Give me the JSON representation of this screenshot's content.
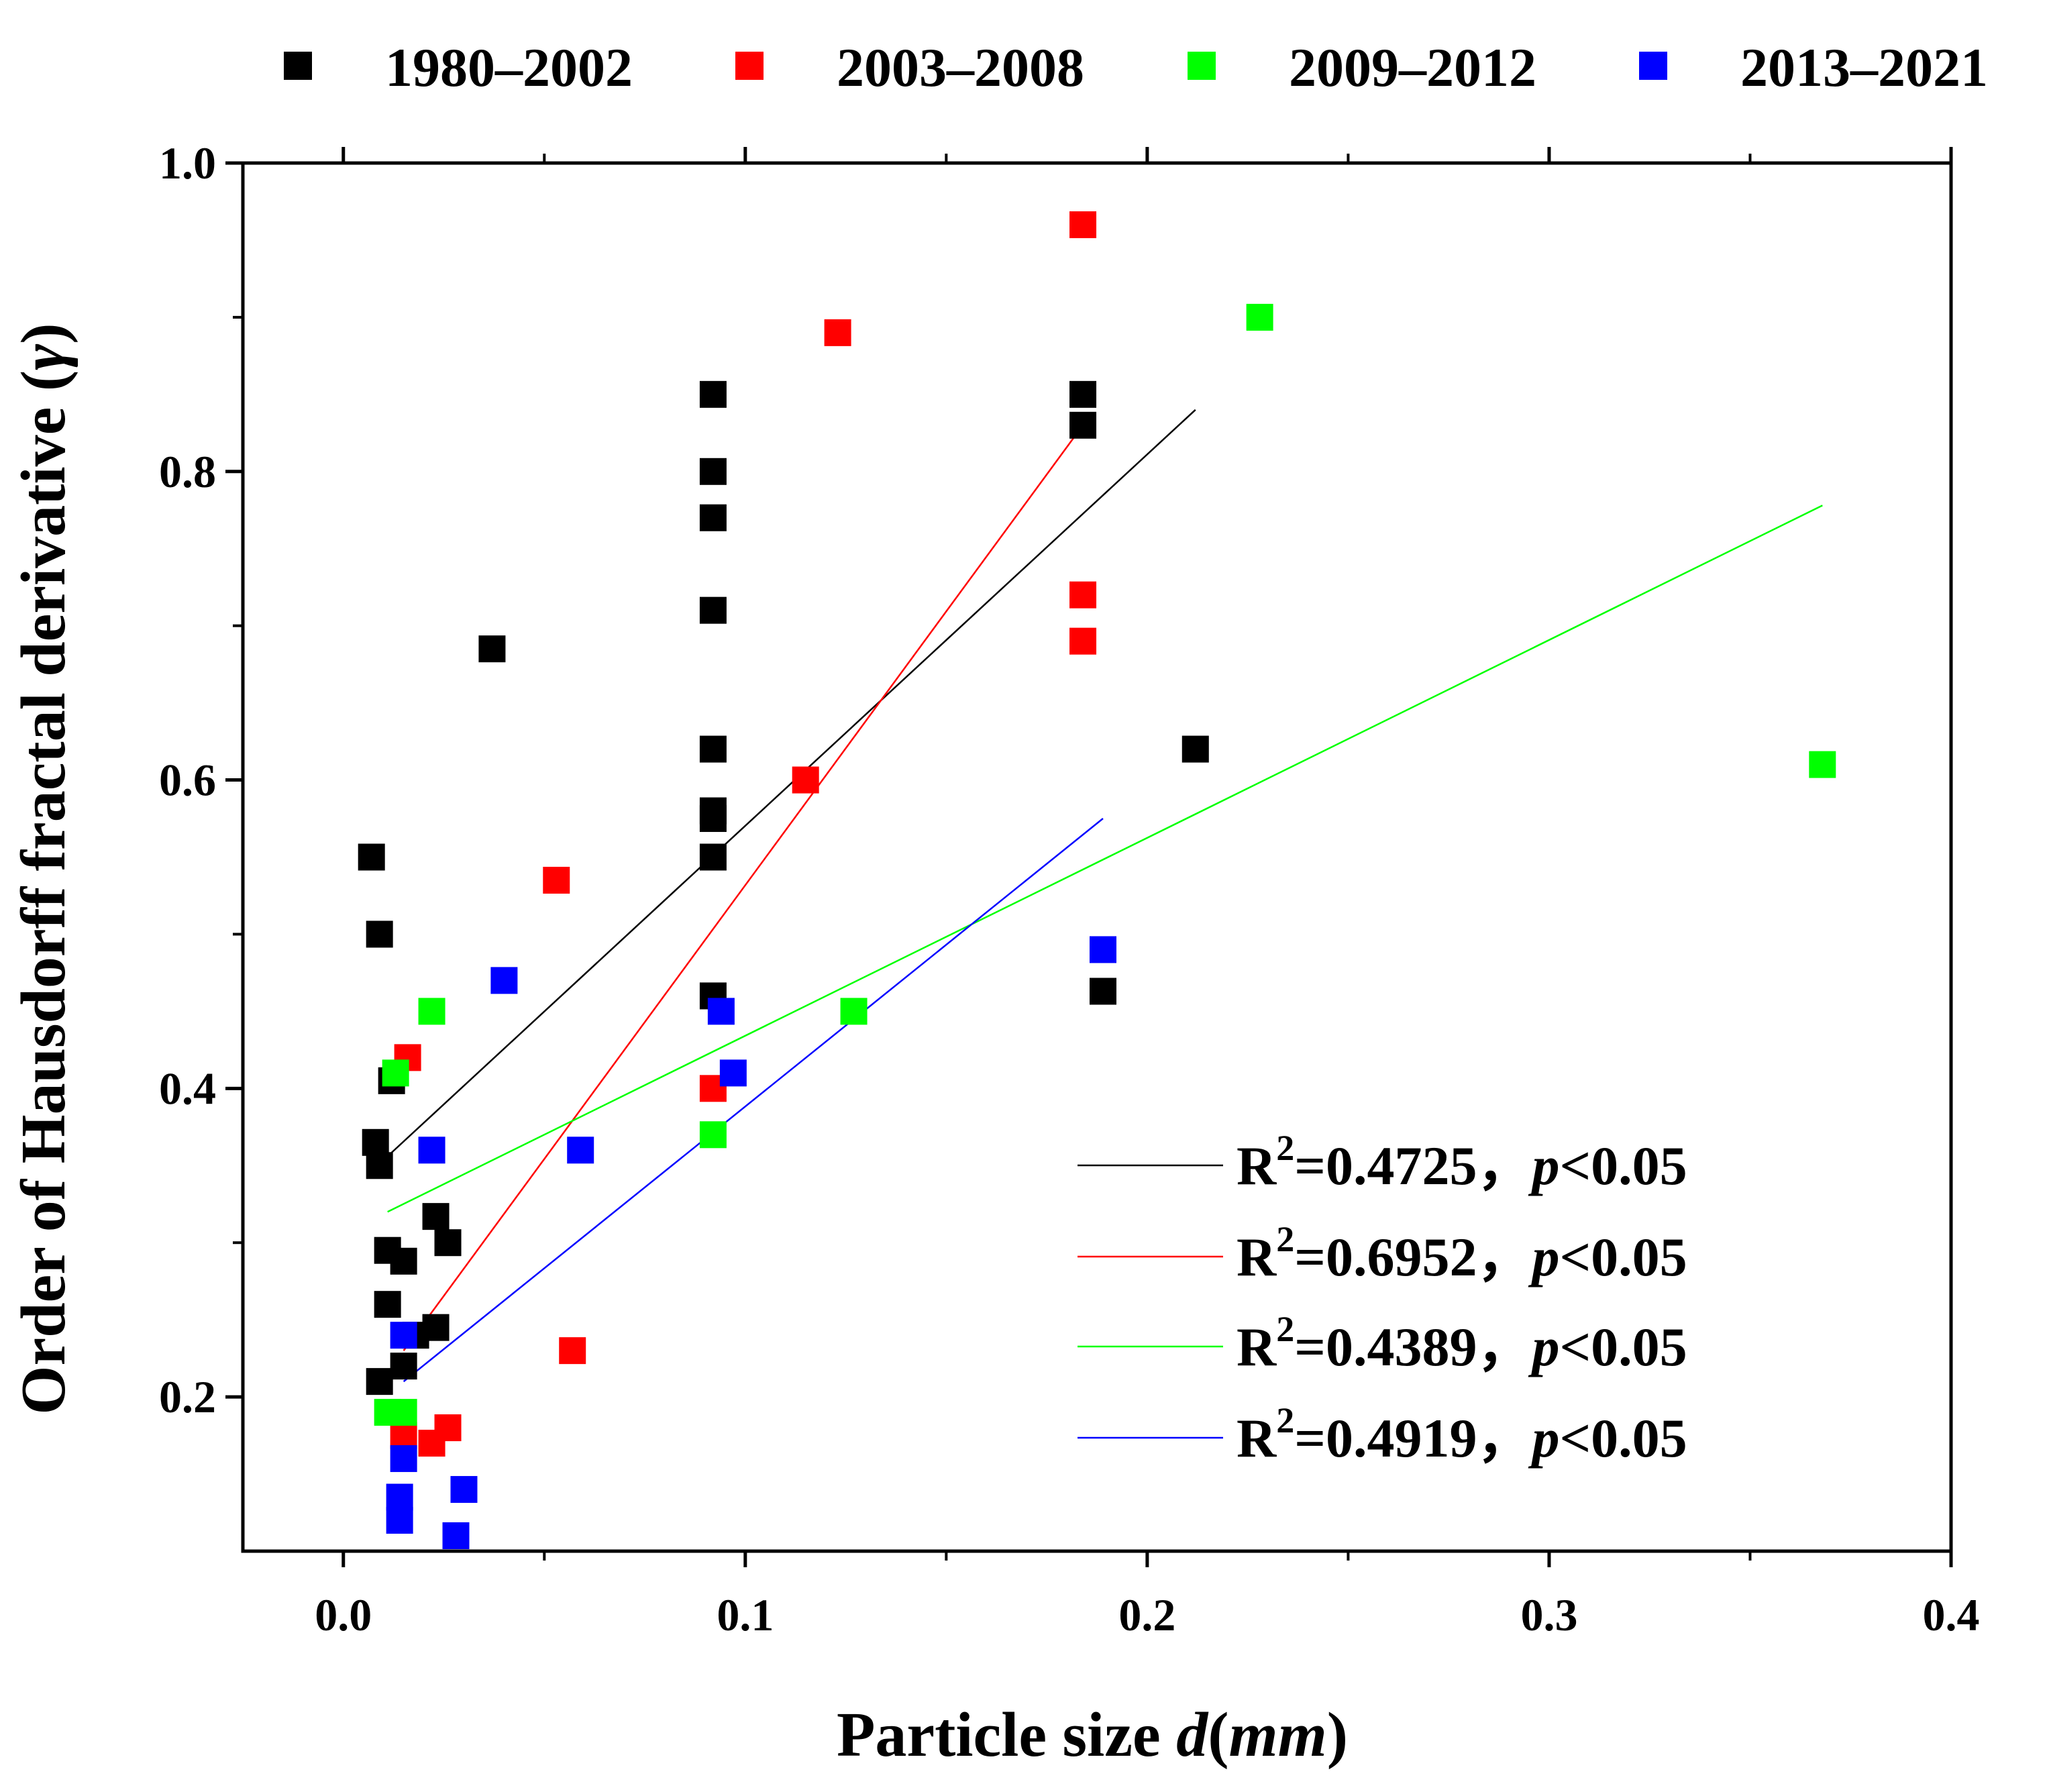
{
  "chart_data": {
    "type": "scatter",
    "title": "",
    "xlabel": "Particle size",
    "xlabel_var": "d",
    "xlabel_unit": "mm",
    "ylabel": "Order of Hausdorff fractal derivative",
    "ylabel_var": "γ",
    "xlim": [
      -0.025,
      0.4
    ],
    "ylim": [
      0.1,
      1.0
    ],
    "xticks": [
      0.0,
      0.1,
      0.2,
      0.3,
      0.4
    ],
    "yticks": [
      0.2,
      0.4,
      0.6,
      0.8,
      1.0
    ],
    "xtick_labels": [
      "0.0",
      "0.1",
      "0.2",
      "0.3",
      "0.4"
    ],
    "ytick_labels": [
      "0.2",
      "0.4",
      "0.6",
      "0.8",
      "1.0"
    ],
    "legend_position": "top",
    "fit_legend_position": "bottom-right",
    "series": [
      {
        "name": "1980–2002",
        "color": "#000000",
        "points": [
          [
            0.007,
            0.55
          ],
          [
            0.009,
            0.5
          ],
          [
            0.012,
            0.405
          ],
          [
            0.008,
            0.365
          ],
          [
            0.009,
            0.35
          ],
          [
            0.011,
            0.295
          ],
          [
            0.015,
            0.288
          ],
          [
            0.011,
            0.26
          ],
          [
            0.009,
            0.21
          ],
          [
            0.015,
            0.22
          ],
          [
            0.018,
            0.24
          ],
          [
            0.023,
            0.245
          ],
          [
            0.023,
            0.317
          ],
          [
            0.026,
            0.3
          ],
          [
            0.037,
            0.685
          ],
          [
            0.092,
            0.85
          ],
          [
            0.092,
            0.8
          ],
          [
            0.092,
            0.77
          ],
          [
            0.092,
            0.71
          ],
          [
            0.092,
            0.62
          ],
          [
            0.092,
            0.58
          ],
          [
            0.092,
            0.575
          ],
          [
            0.092,
            0.55
          ],
          [
            0.092,
            0.46
          ],
          [
            0.184,
            0.85
          ],
          [
            0.184,
            0.83
          ],
          [
            0.212,
            0.62
          ],
          [
            0.189,
            0.463
          ]
        ],
        "fit": {
          "x": [
            0.011,
            0.212
          ],
          "y": [
            0.356,
            0.84
          ],
          "r2_label": "R",
          "r2_value": "=0.4725，",
          "p_var": "p",
          "p_value": "<0.05"
        }
      },
      {
        "name": "2003–2008",
        "color": "#ff0000",
        "points": [
          [
            0.184,
            0.96
          ],
          [
            0.123,
            0.89
          ],
          [
            0.184,
            0.72
          ],
          [
            0.184,
            0.69
          ],
          [
            0.115,
            0.6
          ],
          [
            0.053,
            0.535
          ],
          [
            0.016,
            0.42
          ],
          [
            0.092,
            0.4
          ],
          [
            0.057,
            0.23
          ],
          [
            0.026,
            0.18
          ],
          [
            0.022,
            0.17
          ],
          [
            0.015,
            0.175
          ]
        ],
        "fit": {
          "x": [
            0.015,
            0.184
          ],
          "y": [
            0.23,
            0.83
          ],
          "r2_label": "R",
          "r2_value": "=0.6952，",
          "p_var": "p",
          "p_value": "<0.05"
        }
      },
      {
        "name": "2009–2012",
        "color": "#00ff00",
        "points": [
          [
            0.228,
            0.9
          ],
          [
            0.368,
            0.61
          ],
          [
            0.022,
            0.45
          ],
          [
            0.127,
            0.45
          ],
          [
            0.013,
            0.41
          ],
          [
            0.092,
            0.37
          ],
          [
            0.011,
            0.19
          ],
          [
            0.015,
            0.19
          ]
        ],
        "fit": {
          "x": [
            0.011,
            0.368
          ],
          "y": [
            0.32,
            0.778
          ],
          "r2_label": "R",
          "r2_value": "=0.4389，",
          "p_var": "p",
          "p_value": "<0.05"
        }
      },
      {
        "name": "2013–2021",
        "color": "#0000ff",
        "points": [
          [
            0.189,
            0.49
          ],
          [
            0.04,
            0.47
          ],
          [
            0.094,
            0.45
          ],
          [
            0.097,
            0.41
          ],
          [
            0.022,
            0.36
          ],
          [
            0.059,
            0.36
          ],
          [
            0.015,
            0.24
          ],
          [
            0.015,
            0.16
          ],
          [
            0.014,
            0.135
          ],
          [
            0.014,
            0.12
          ],
          [
            0.03,
            0.14
          ],
          [
            0.028,
            0.11
          ]
        ],
        "fit": {
          "x": [
            0.015,
            0.189
          ],
          "y": [
            0.21,
            0.575
          ],
          "r2_label": "R",
          "r2_value": "=0.4919，",
          "p_var": "p",
          "p_value": "<0.05"
        }
      }
    ]
  }
}
